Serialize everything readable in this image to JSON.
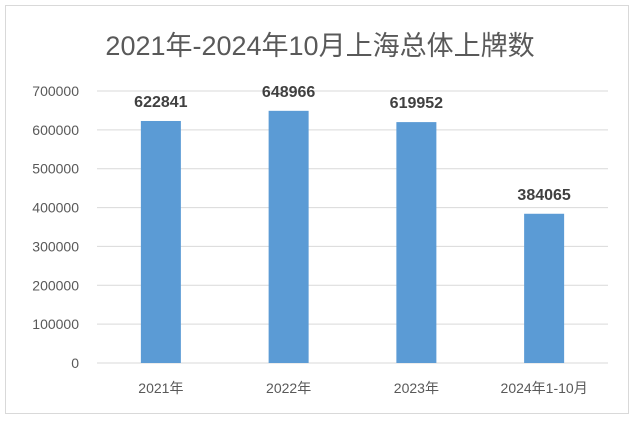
{
  "chart_data": {
    "type": "bar",
    "title": "2021年-2024年10月上海总体上牌数",
    "categories": [
      "2021年",
      "2022年",
      "2023年",
      "2024年1-10月"
    ],
    "values": [
      622841,
      648966,
      619952,
      384065
    ],
    "data_labels": [
      "622841",
      "648966",
      "619952",
      "384065"
    ],
    "ylim": [
      0,
      700000
    ],
    "yticks": [
      "0",
      "100000",
      "200000",
      "300000",
      "400000",
      "500000",
      "600000",
      "700000"
    ],
    "grid": true,
    "legend": "none",
    "bar_color": "#5b9bd5"
  }
}
